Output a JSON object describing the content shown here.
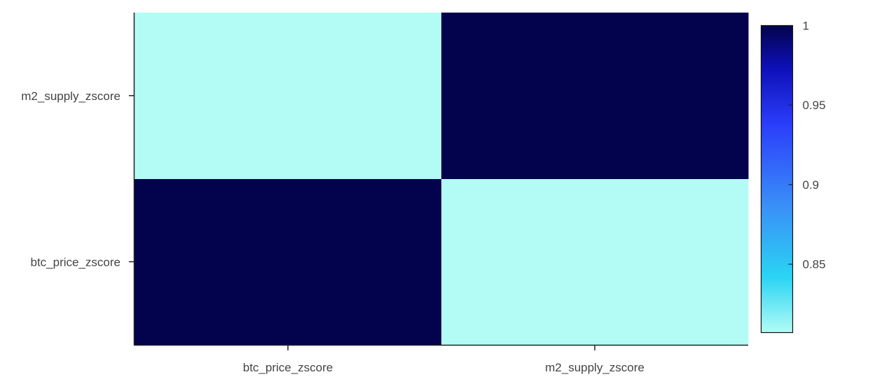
{
  "chart_data": {
    "type": "heatmap",
    "x_categories": [
      "btc_price_zscore",
      "m2_supply_zscore"
    ],
    "y_categories": [
      "btc_price_zscore",
      "m2_supply_zscore"
    ],
    "z": [
      [
        1.0,
        0.807
      ],
      [
        0.807,
        1.0
      ]
    ],
    "colorscale": {
      "zmin": 0.807,
      "zmax": 1.0,
      "ticks": [
        {
          "value": 1,
          "label": "1"
        },
        {
          "value": 0.95,
          "label": "0.95"
        },
        {
          "value": 0.9,
          "label": "0.9"
        },
        {
          "value": 0.85,
          "label": "0.85"
        }
      ],
      "stops": [
        {
          "t": 0.0,
          "color": "#b3fcf5"
        },
        {
          "t": 0.18,
          "color": "#2ad4f4"
        },
        {
          "t": 0.42,
          "color": "#3a8df8"
        },
        {
          "t": 0.68,
          "color": "#2a3dfa"
        },
        {
          "t": 0.86,
          "color": "#0e10b8"
        },
        {
          "t": 1.0,
          "color": "#03034d"
        }
      ]
    },
    "title": "",
    "xlabel": "",
    "ylabel": "",
    "legend": "colorbar-right"
  }
}
